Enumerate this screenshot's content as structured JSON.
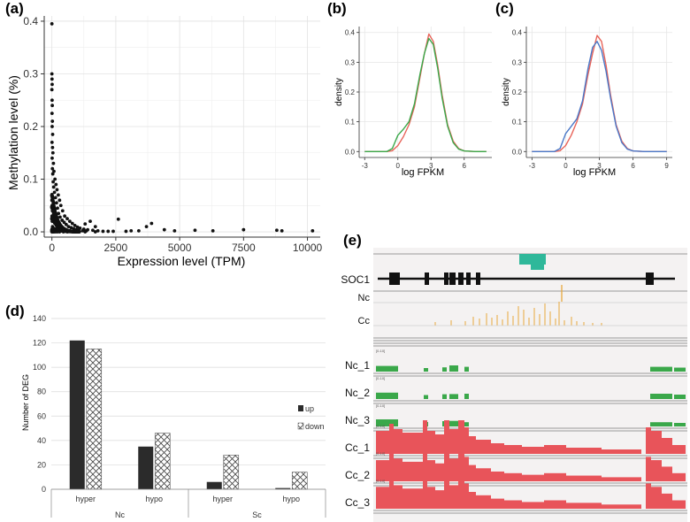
{
  "panels": {
    "a": {
      "label": "(a)",
      "chart_data": {
        "type": "scatter",
        "title": "",
        "xlabel": "Expression level (TPM)",
        "ylabel": "Methylation level (%)",
        "xlim": [
          -300,
          10500
        ],
        "ylim": [
          -0.01,
          0.41
        ],
        "xticks": [
          "0",
          "2500",
          "5000",
          "7500",
          "10000"
        ],
        "xtick_values": [
          0,
          2500,
          5000,
          7500,
          10000
        ],
        "yticks": [
          "0.0",
          "0.1",
          "0.2",
          "0.3",
          "0.4"
        ],
        "ytick_values": [
          0.0,
          0.1,
          0.2,
          0.3,
          0.4
        ],
        "points": [
          [
            0,
            0.395
          ],
          [
            0,
            0.3
          ],
          [
            5,
            0.29
          ],
          [
            10,
            0.28
          ],
          [
            0,
            0.27
          ],
          [
            8,
            0.25
          ],
          [
            15,
            0.24
          ],
          [
            5,
            0.225
          ],
          [
            20,
            0.21
          ],
          [
            10,
            0.2
          ],
          [
            30,
            0.185
          ],
          [
            5,
            0.17
          ],
          [
            25,
            0.16
          ],
          [
            40,
            0.15
          ],
          [
            10,
            0.14
          ],
          [
            60,
            0.13
          ],
          [
            20,
            0.12
          ],
          [
            80,
            0.115
          ],
          [
            35,
            0.11
          ],
          [
            120,
            0.1
          ],
          [
            50,
            0.095
          ],
          [
            160,
            0.09
          ],
          [
            70,
            0.085
          ],
          [
            200,
            0.08
          ],
          [
            100,
            0.075
          ],
          [
            250,
            0.07
          ],
          [
            140,
            0.065
          ],
          [
            300,
            0.06
          ],
          [
            180,
            0.055
          ],
          [
            350,
            0.05
          ],
          [
            220,
            0.045
          ],
          [
            420,
            0.04
          ],
          [
            260,
            0.035
          ],
          [
            500,
            0.03
          ],
          [
            320,
            0.028
          ],
          [
            600,
            0.025
          ],
          [
            400,
            0.022
          ],
          [
            700,
            0.02
          ],
          [
            480,
            0.018
          ],
          [
            800,
            0.016
          ],
          [
            560,
            0.014
          ],
          [
            900,
            0.012
          ],
          [
            650,
            0.01
          ],
          [
            1000,
            0.009
          ],
          [
            750,
            0.008
          ],
          [
            1100,
            0.007
          ],
          [
            850,
            0.006
          ],
          [
            1250,
            0.005
          ],
          [
            950,
            0.004
          ],
          [
            1400,
            0.004
          ],
          [
            1050,
            0.003
          ],
          [
            1600,
            0.003
          ],
          [
            1200,
            0.002
          ],
          [
            1800,
            0.002
          ],
          [
            1350,
            0.002
          ],
          [
            2000,
            0.001
          ],
          [
            2200,
            0.001
          ],
          [
            2400,
            0.001
          ],
          [
            1500,
            0.02
          ],
          [
            1700,
            0.01
          ],
          [
            1300,
            0.015
          ],
          [
            2600,
            0.024
          ],
          [
            3700,
            0.01
          ],
          [
            3900,
            0.016
          ],
          [
            3100,
            0.002
          ],
          [
            4400,
            0.004
          ],
          [
            4800,
            0.002
          ],
          [
            5600,
            0.003
          ],
          [
            6300,
            0.002
          ],
          [
            7500,
            0.004
          ],
          [
            8800,
            0.003
          ],
          [
            9000,
            0.002
          ],
          [
            10200,
            0.002
          ],
          [
            2900,
            0.001
          ],
          [
            3400,
            0.002
          ],
          [
            0,
            0.06
          ],
          [
            10,
            0.05
          ],
          [
            20,
            0.04
          ],
          [
            5,
            0.03
          ],
          [
            15,
            0.02
          ],
          [
            25,
            0.01
          ],
          [
            30,
            0.0
          ],
          [
            60,
            0.0
          ],
          [
            90,
            0.0
          ],
          [
            150,
            0.0
          ],
          [
            220,
            0.0
          ],
          [
            300,
            0.0
          ],
          [
            450,
            0.0
          ],
          [
            600,
            0.0
          ],
          [
            800,
            0.0
          ],
          [
            1000,
            0.0
          ],
          [
            1300,
            0.0
          ],
          [
            1700,
            0.0
          ]
        ]
      }
    },
    "b": {
      "label": "(b)",
      "chart_data": {
        "type": "line",
        "xlabel": "log FPKM",
        "ylabel": "density",
        "xlim": [
          -3.5,
          8.5
        ],
        "ylim": [
          -0.02,
          0.42
        ],
        "xticks": [
          "-3",
          "0",
          "3",
          "6"
        ],
        "xtick_values": [
          -3,
          0,
          3,
          6
        ],
        "yticks": [
          "0.0",
          "0.1",
          "0.2",
          "0.3",
          "0.4"
        ],
        "ytick_values": [
          0.0,
          0.1,
          0.2,
          0.3,
          0.4
        ],
        "series": [
          {
            "name": "red",
            "color": "#e8645a",
            "x": [
              -3,
              -1,
              -0.5,
              0,
              0.5,
              1,
              1.5,
              2,
              2.4,
              2.8,
              3.2,
              3.6,
              4,
              4.5,
              5,
              5.5,
              6,
              7,
              8
            ],
            "y": [
              0,
              0,
              0.003,
              0.02,
              0.05,
              0.09,
              0.15,
              0.25,
              0.33,
              0.395,
              0.37,
              0.29,
              0.19,
              0.09,
              0.035,
              0.01,
              0.002,
              0,
              0
            ]
          },
          {
            "name": "green",
            "color": "#3aa84a",
            "x": [
              -3,
              -1,
              -0.5,
              0,
              0.5,
              1,
              1.5,
              2,
              2.4,
              2.8,
              3.2,
              3.6,
              4,
              4.5,
              5,
              5.5,
              6,
              7,
              8
            ],
            "y": [
              0,
              0,
              0.01,
              0.055,
              0.075,
              0.1,
              0.16,
              0.26,
              0.33,
              0.38,
              0.36,
              0.28,
              0.18,
              0.085,
              0.03,
              0.008,
              0.002,
              0,
              0
            ]
          }
        ]
      }
    },
    "c": {
      "label": "(c)",
      "chart_data": {
        "type": "line",
        "xlabel": "log FPKM",
        "ylabel": "density",
        "xlim": [
          -3.5,
          9.5
        ],
        "ylim": [
          -0.02,
          0.42
        ],
        "xticks": [
          "-3",
          "0",
          "3",
          "6",
          "9"
        ],
        "xtick_values": [
          -3,
          0,
          3,
          6,
          9
        ],
        "yticks": [
          "0.0",
          "0.1",
          "0.2",
          "0.3",
          "0.4"
        ],
        "ytick_values": [
          0.0,
          0.1,
          0.2,
          0.3,
          0.4
        ],
        "series": [
          {
            "name": "red",
            "color": "#e8645a",
            "x": [
              -3,
              -1,
              -0.5,
              0,
              0.5,
              1,
              1.5,
              2,
              2.4,
              2.8,
              3.2,
              3.6,
              4,
              4.5,
              5,
              5.5,
              6,
              7,
              9
            ],
            "y": [
              0,
              0,
              0.003,
              0.02,
              0.055,
              0.1,
              0.16,
              0.26,
              0.33,
              0.39,
              0.37,
              0.29,
              0.19,
              0.09,
              0.035,
              0.01,
              0.002,
              0,
              0
            ]
          },
          {
            "name": "blue",
            "color": "#4a78c8",
            "x": [
              -3,
              -1,
              -0.5,
              0,
              0.5,
              1,
              1.5,
              2,
              2.4,
              2.8,
              3.2,
              3.6,
              4,
              4.5,
              5,
              5.5,
              6,
              7,
              9
            ],
            "y": [
              0,
              0,
              0.01,
              0.06,
              0.085,
              0.11,
              0.17,
              0.28,
              0.35,
              0.37,
              0.34,
              0.27,
              0.18,
              0.085,
              0.03,
              0.008,
              0.002,
              0,
              0
            ]
          }
        ]
      }
    },
    "d": {
      "label": "(d)",
      "chart_data": {
        "type": "bar",
        "ylabel": "Number of DEG",
        "ylim": [
          0,
          140
        ],
        "yticks": [
          "0",
          "20",
          "40",
          "60",
          "80",
          "100",
          "120",
          "140"
        ],
        "ytick_values": [
          0,
          20,
          40,
          60,
          80,
          100,
          120,
          140
        ],
        "categories": [
          "hyper",
          "hypo",
          "hyper",
          "hypo"
        ],
        "groups": [
          "Nc",
          "Sc"
        ],
        "series": [
          {
            "name": "up",
            "color": "#2b2b2b",
            "values": [
              122,
              35,
              6,
              1
            ]
          },
          {
            "name": "down",
            "pattern": "crosshatch",
            "values": [
              115,
              46,
              28,
              14
            ]
          }
        ],
        "legend": [
          "up",
          "down"
        ]
      }
    },
    "e": {
      "label": "(e)",
      "gene": "SOC1",
      "methyl_tracks": [
        "Nc",
        "Cc"
      ],
      "range_label": "[0-10]",
      "coverage_tracks": [
        "Nc_1",
        "Nc_2",
        "Nc_3",
        "Cc_1",
        "Cc_2",
        "Cc_3"
      ],
      "colors": {
        "nc": "#3aa84a",
        "cc": "#e8545a",
        "methyl": "#e8a83c",
        "teal": "#2fb89a",
        "bg": "#f4f2f2"
      }
    }
  }
}
